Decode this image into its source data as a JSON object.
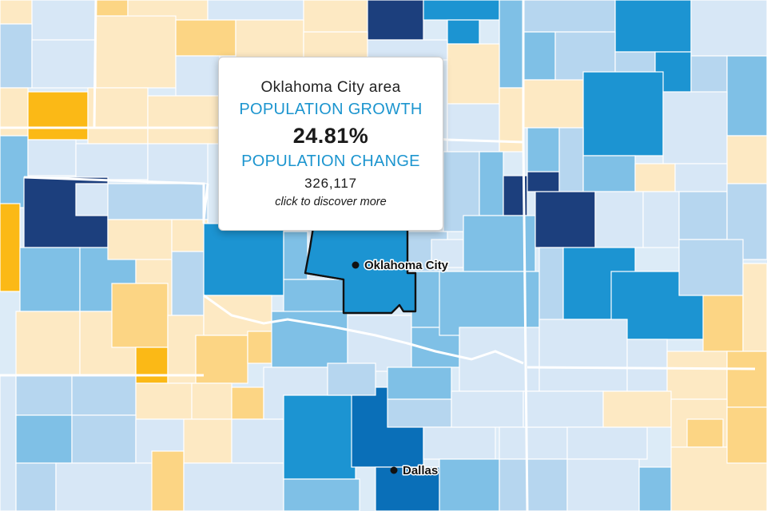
{
  "colors": {
    "background": "#dcebf7",
    "growth_very_high": "#1c3f7d",
    "growth_high": "#0a6fb8",
    "growth_mid_high": "#1c94d2",
    "growth_mid": "#7fc0e6",
    "growth_low": "#b6d6ef",
    "growth_very_low": "#d7e7f6",
    "decline_slight": "#fde9c3",
    "decline_mid": "#fcd584",
    "decline_high": "#fbb916",
    "tooltip_accent": "#1c95cf"
  },
  "tooltip": {
    "area_name": "Oklahoma City area",
    "growth_label": "POPULATION GROWTH",
    "growth_value": "24.81%",
    "change_label": "POPULATION CHANGE",
    "change_value": "326,117",
    "cta": "click to discover more"
  },
  "cities": [
    {
      "name": "Oklahoma City"
    },
    {
      "name": "Dallas"
    }
  ]
}
